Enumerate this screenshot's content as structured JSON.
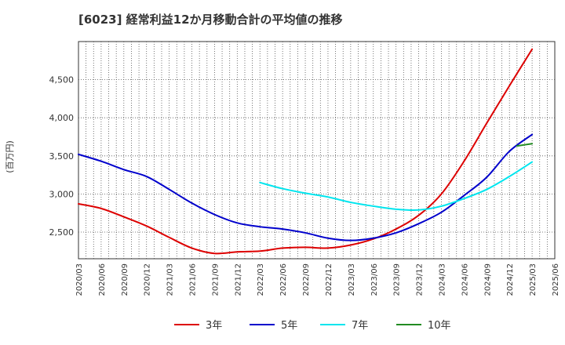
{
  "chart_data": {
    "type": "line",
    "title": "[6023]  経常利益12か月移動合計の平均値の推移",
    "ylabel": "(百万円)",
    "ylim": [
      2150,
      5000
    ],
    "yticks": [
      2500,
      3000,
      3500,
      4000,
      4500
    ],
    "ytick_labels": [
      "2,500",
      "3,000",
      "3,500",
      "4,000",
      "4,500"
    ],
    "xlim": [
      "2020-03",
      "2025-06"
    ],
    "xtick_labels": [
      "2020/03",
      "2020/06",
      "2020/09",
      "2020/12",
      "2021/03",
      "2021/06",
      "2021/09",
      "2021/12",
      "2022/03",
      "2022/06",
      "2022/09",
      "2022/12",
      "2023/03",
      "2023/06",
      "2023/09",
      "2023/12",
      "2024/03",
      "2024/06",
      "2024/09",
      "2024/12",
      "2025/03",
      "2025/06"
    ],
    "grid": true,
    "legend_position": "bottom",
    "series": [
      {
        "name": "3年",
        "color": "#dd0000",
        "x": [
          "2020-03",
          "2020-06",
          "2020-09",
          "2020-12",
          "2021-03",
          "2021-06",
          "2021-09",
          "2021-12",
          "2022-03",
          "2022-06",
          "2022-09",
          "2022-12",
          "2023-03",
          "2023-06",
          "2023-09",
          "2023-12",
          "2024-03",
          "2024-06",
          "2024-09",
          "2024-12",
          "2025-03"
        ],
        "values": [
          2870,
          2810,
          2700,
          2580,
          2430,
          2290,
          2220,
          2240,
          2250,
          2290,
          2300,
          2290,
          2330,
          2410,
          2540,
          2720,
          3000,
          3430,
          3930,
          4420,
          4900
        ]
      },
      {
        "name": "5年",
        "color": "#0000cc",
        "x": [
          "2020-03",
          "2020-06",
          "2020-09",
          "2020-12",
          "2021-03",
          "2021-06",
          "2021-09",
          "2021-12",
          "2022-03",
          "2022-06",
          "2022-09",
          "2022-12",
          "2023-03",
          "2023-06",
          "2023-09",
          "2023-12",
          "2024-03",
          "2024-06",
          "2024-09",
          "2024-12",
          "2025-03"
        ],
        "values": [
          3520,
          3430,
          3320,
          3230,
          3060,
          2880,
          2730,
          2620,
          2570,
          2540,
          2490,
          2420,
          2390,
          2420,
          2490,
          2610,
          2760,
          2980,
          3220,
          3560,
          3780
        ]
      },
      {
        "name": "7年",
        "color": "#00e5ee",
        "x": [
          "2022-03",
          "2022-06",
          "2022-09",
          "2022-12",
          "2023-03",
          "2023-06",
          "2023-09",
          "2023-12",
          "2024-03",
          "2024-06",
          "2024-09",
          "2024-12",
          "2025-03"
        ],
        "values": [
          3150,
          3070,
          3010,
          2960,
          2890,
          2840,
          2800,
          2790,
          2840,
          2940,
          3060,
          3230,
          3420
        ]
      },
      {
        "name": "10年",
        "color": "#228b22",
        "x": [
          "2025-01",
          "2025-03"
        ],
        "values": [
          3630,
          3660
        ]
      }
    ]
  }
}
